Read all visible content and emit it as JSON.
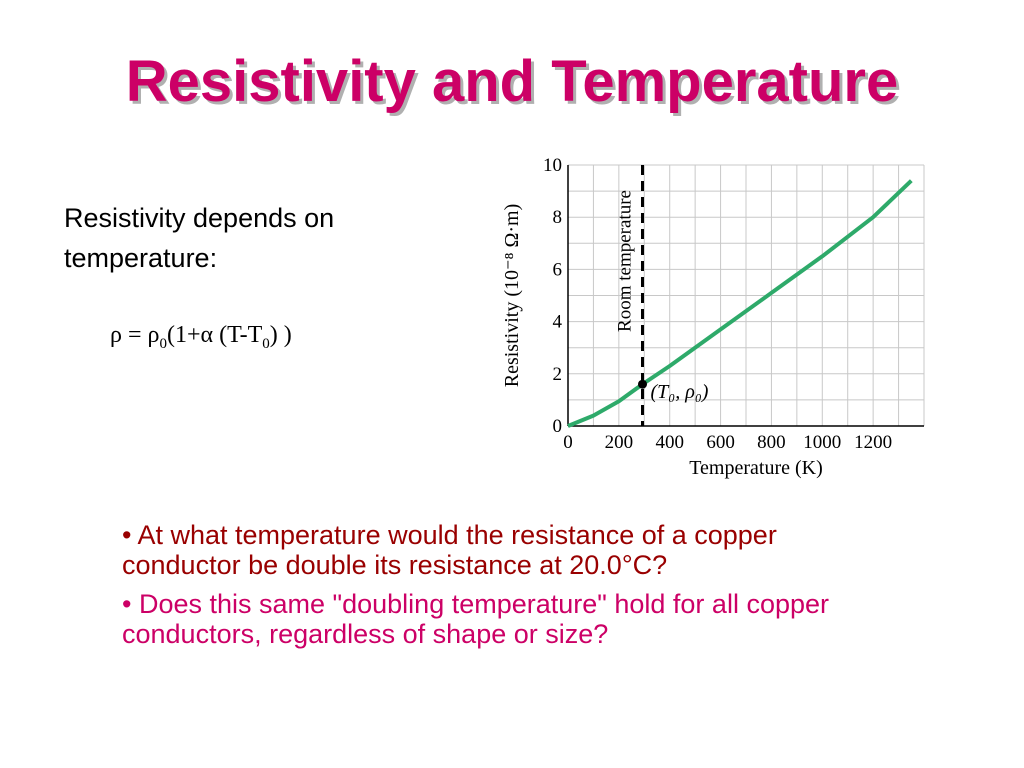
{
  "title": "Resistivity and Temperature",
  "intro_text": "Resistivity depends on temperature:",
  "formula": {
    "rho": "ρ",
    "equals": " = ",
    "rho0": "ρ",
    "sub0": "0",
    "open": "(1+",
    "alpha": "α",
    "mid": " (T-T",
    "sub_t0": "0",
    "close": ") )"
  },
  "bullets": [
    "• At what temperature would the resistance of a copper conductor be double its resistance at 20.0°C?",
    "• Does this same \"doubling temperature\" hold for all copper conductors, regardless of shape or size?"
  ],
  "chart_data": {
    "type": "line",
    "x_ticks": [
      0,
      200,
      400,
      600,
      800,
      1000,
      1200
    ],
    "y_ticks": [
      0,
      2,
      4,
      6,
      8,
      10
    ],
    "xlim": [
      0,
      1400
    ],
    "ylim": [
      0,
      10
    ],
    "xlabel": "Temperature (K)",
    "ylabel": "Resistivity (10⁻⁸ Ω·m)",
    "grid": true,
    "series": [
      {
        "x": [
          0,
          100,
          200,
          293,
          400,
          600,
          800,
          1000,
          1200,
          1350
        ],
        "y": [
          0.0,
          0.4,
          0.95,
          1.6,
          2.3,
          3.7,
          5.1,
          6.5,
          8.0,
          9.4
        ]
      }
    ],
    "reference_line": {
      "x": 293,
      "label": "Room temperature"
    },
    "point": {
      "x": 293,
      "y": 1.6,
      "label": "(T₀, ρ₀)"
    },
    "colors": {
      "line": "#2eaa6a",
      "grid": "#c8c8c8"
    }
  }
}
